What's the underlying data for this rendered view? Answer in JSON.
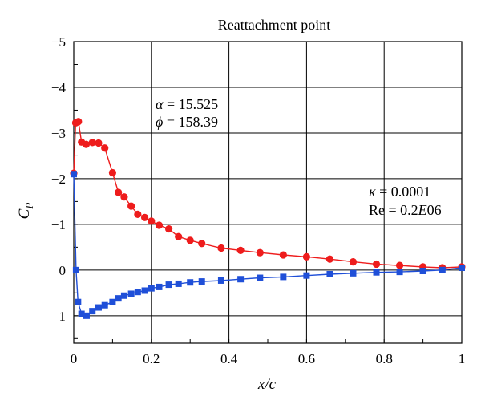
{
  "chart_data": {
    "type": "line",
    "title": "Reattachment point",
    "xlabel": "x/c",
    "ylabel": "C",
    "ylabel_sub": "P",
    "xlim": [
      0,
      1
    ],
    "ylim": [
      1.6,
      -5
    ],
    "y_axis_inverted": true,
    "grid": true,
    "x_ticks": [
      0,
      0.2,
      0.4,
      0.6,
      0.8,
      1
    ],
    "x_tick_labels": [
      "0",
      "0.2",
      "0.4",
      "0.6",
      "0.8",
      "1"
    ],
    "y_ticks": [
      -5,
      -4,
      -3,
      -2,
      -1,
      0,
      1
    ],
    "y_tick_labels": [
      "−5",
      "−4",
      "−3",
      "−2",
      "−1",
      "0",
      "1"
    ],
    "annotations": {
      "alpha": {
        "symbol": "α",
        "text": " = 15.525"
      },
      "phi": {
        "symbol": "ϕ",
        "text": " = 158.39"
      },
      "kappa": {
        "symbol": "κ",
        "text": " = 0.0001"
      },
      "re": {
        "prefix": "Re = 0.2",
        "italic": "E",
        "suffix": "06"
      }
    },
    "series": [
      {
        "marker": "circle",
        "color": "#ee1c1c",
        "x": [
          0.0,
          0.005,
          0.012,
          0.02,
          0.032,
          0.048,
          0.064,
          0.08,
          0.1,
          0.115,
          0.13,
          0.148,
          0.165,
          0.183,
          0.2,
          0.22,
          0.245,
          0.27,
          0.3,
          0.33,
          0.38,
          0.43,
          0.48,
          0.54,
          0.6,
          0.66,
          0.72,
          0.78,
          0.84,
          0.9,
          0.95,
          1.0
        ],
        "y": [
          -2.12,
          -3.22,
          -3.25,
          -2.8,
          -2.75,
          -2.79,
          -2.78,
          -2.67,
          -2.13,
          -1.7,
          -1.6,
          -1.4,
          -1.22,
          -1.15,
          -1.07,
          -0.98,
          -0.9,
          -0.73,
          -0.65,
          -0.58,
          -0.48,
          -0.43,
          -0.38,
          -0.33,
          -0.29,
          -0.24,
          -0.18,
          -0.13,
          -0.1,
          -0.07,
          -0.05,
          -0.07
        ]
      },
      {
        "marker": "square",
        "color": "#1f4fd8",
        "x": [
          0.0,
          0.006,
          0.011,
          0.02,
          0.033,
          0.048,
          0.064,
          0.08,
          0.1,
          0.115,
          0.13,
          0.148,
          0.165,
          0.183,
          0.2,
          0.22,
          0.245,
          0.27,
          0.3,
          0.33,
          0.38,
          0.43,
          0.48,
          0.54,
          0.6,
          0.66,
          0.72,
          0.78,
          0.84,
          0.9,
          0.95,
          1.0
        ],
        "y": [
          -2.1,
          0.0,
          0.7,
          0.96,
          1.0,
          0.9,
          0.82,
          0.77,
          0.7,
          0.62,
          0.56,
          0.52,
          0.48,
          0.45,
          0.4,
          0.37,
          0.32,
          0.3,
          0.27,
          0.25,
          0.23,
          0.2,
          0.17,
          0.15,
          0.12,
          0.09,
          0.07,
          0.05,
          0.04,
          0.02,
          0.0,
          -0.05
        ]
      }
    ]
  }
}
